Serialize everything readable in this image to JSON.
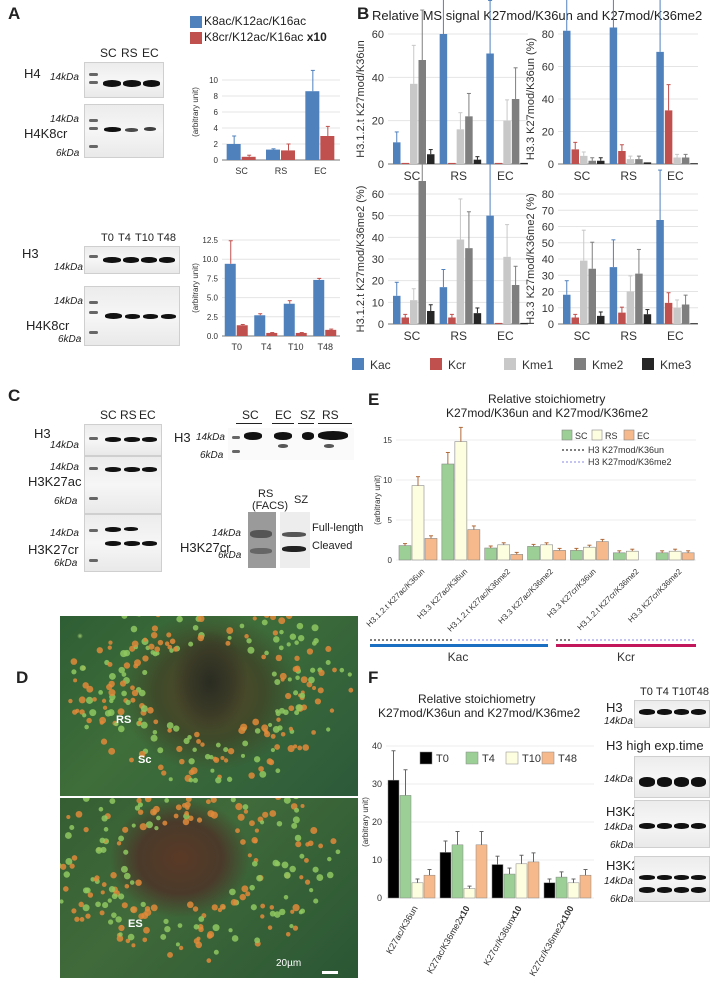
{
  "panels": {
    "A": "A",
    "B": "B",
    "C": "C",
    "D": "D",
    "E": "E",
    "F": "F"
  },
  "panelA": {
    "lanes_top": [
      "SC",
      "RS",
      "EC"
    ],
    "blot1_label": "H4",
    "blot2_label": "H4K8cr",
    "lanes_bottom": [
      "T0",
      "T4",
      "T10",
      "T48"
    ],
    "blot3_label": "H3",
    "blot4_label": "H4K8cr",
    "mw_14": "14kDa",
    "mw_6": "6kDa"
  },
  "chart_data": [
    {
      "id": "A-top",
      "type": "bar",
      "categories": [
        "SC",
        "RS",
        "EC"
      ],
      "ylabel": "(arbitrary unit)",
      "ylim": [
        0,
        12
      ],
      "legend": [
        "K8ac/K12ac/K16ac",
        "K8cr/K12ac/K16ac x10"
      ],
      "legend_bold": "x10",
      "series": [
        {
          "name": "K8ac/K12ac/K16ac",
          "color": "#4f81bd",
          "values": [
            2.0,
            1.3,
            8.6
          ],
          "errors": [
            1.0,
            0.1,
            2.6
          ]
        },
        {
          "name": "K8cr/K12ac/K16ac x10",
          "color": "#c0504d",
          "values": [
            0.4,
            1.2,
            3.0
          ],
          "errors": [
            0.2,
            0.8,
            1.2
          ]
        }
      ],
      "yticks": [
        "0",
        "2",
        "4",
        "6",
        "8",
        "10"
      ]
    },
    {
      "id": "A-bottom",
      "type": "bar",
      "categories": [
        "T0",
        "T4",
        "T10",
        "T48"
      ],
      "ylabel": "(arbitrary unit)",
      "ylim": [
        0,
        12.5
      ],
      "yticks": [
        "0.0",
        "2.5",
        "5.0",
        "7.5",
        "10.0",
        "12.5"
      ],
      "series": [
        {
          "color": "#c0504d",
          "values": [
            9.4,
            2.7,
            4.2,
            7.3
          ],
          "errors": [
            3.0,
            0.2,
            0.4,
            0.2
          ],
          "fill": "#4f81bd"
        },
        {
          "color": "#c0504d",
          "values": [
            1.4,
            0.4,
            0.4,
            0.8
          ],
          "errors": [
            0.1,
            0.05,
            0.05,
            0.1
          ]
        }
      ]
    },
    {
      "id": "B",
      "type": "bar",
      "title": "Relative MS signal K27mod/K36un and K27mod/K36me2",
      "legend": [
        "Kac",
        "Kcr",
        "Kme1",
        "Kme2",
        "Kme3"
      ],
      "colors": [
        "#4f81bd",
        "#c0504d",
        "#c8c8c8",
        "#7f7f7f",
        "#262626"
      ],
      "subplots": [
        {
          "ylabel": "H3.1.2.t K27mod/K36un",
          "ylim": [
            0,
            60
          ],
          "yticks": [
            "0",
            "20",
            "40",
            "60"
          ],
          "categories": [
            "SC",
            "RS",
            "EC"
          ],
          "values": [
            [
              10,
              0.5,
              37,
              48,
              4.5
            ],
            [
              60,
              0.5,
              16,
              22,
              2
            ],
            [
              51,
              0.5,
              20,
              30,
              0.5
            ]
          ]
        },
        {
          "ylabel": "H3.3 K27mod/K36un (%)",
          "ylim": [
            0,
            80
          ],
          "yticks": [
            "0",
            "20",
            "40",
            "60",
            "80"
          ],
          "categories": [
            "SC",
            "RS",
            "EC"
          ],
          "values": [
            [
              82,
              9,
              5,
              2,
              2
            ],
            [
              84,
              8,
              3,
              3,
              1
            ],
            [
              69,
              33,
              4,
              4,
              0.5
            ]
          ]
        },
        {
          "ylabel": "H3.1.2.t K27mod/K36me2 (%)",
          "ylim": [
            0,
            60
          ],
          "yticks": [
            "0",
            "10",
            "20",
            "30",
            "40",
            "50",
            "60"
          ],
          "categories": [
            "SC",
            "RS",
            "EC"
          ],
          "values": [
            [
              13,
              3,
              11,
              66,
              6
            ],
            [
              17,
              3,
              39,
              35,
              5
            ],
            [
              50,
              0.5,
              31,
              18,
              0.5
            ]
          ]
        },
        {
          "ylabel": "H3.3 K27mod/K36me2 (%)",
          "ylim": [
            0,
            80
          ],
          "yticks": [
            "0",
            "10",
            "20",
            "30",
            "40",
            "50",
            "60",
            "70",
            "80"
          ],
          "categories": [
            "SC",
            "RS",
            "EC"
          ],
          "values": [
            [
              18,
              4,
              39,
              34,
              5
            ],
            [
              35,
              7,
              20,
              31,
              6
            ],
            [
              64,
              13,
              10,
              12,
              0.5
            ]
          ]
        }
      ]
    },
    {
      "id": "E",
      "type": "bar",
      "title": "Relative stoichiometry",
      "subtitle": "K27mod/K36un and K27mod/K36me2",
      "ylabel": "(arbitrary unit)",
      "ylim": [
        0,
        15
      ],
      "yticks": [
        "0",
        "5",
        "10",
        "15"
      ],
      "legend": [
        "SC",
        "RS",
        "EC"
      ],
      "legend_lines": [
        "H3 K27mod/K36un",
        "H3 K27mod/K36me2"
      ],
      "colors": [
        "#9bcf95",
        "#fdfde0",
        "#f6b98b"
      ],
      "categories": [
        "H3.1.2.t K27ac/K36un",
        "H3.3 K27ac/K36un",
        "H3.1.2.t K27ac/K36me2",
        "H3.3 K27ac/K36me2",
        "H3.3 K27cr/K36un",
        "H3.1.2.t K27cr/K36me2",
        "H3.3 K27cr/K36me2"
      ],
      "values": [
        [
          1.8,
          9.3,
          2.7
        ],
        [
          12.0,
          14.8,
          3.8
        ],
        [
          1.5,
          1.9,
          0.7
        ],
        [
          1.7,
          1.9,
          1.2
        ],
        [
          1.2,
          1.6,
          2.3
        ],
        [
          0.9,
          1.1,
          0
        ],
        [
          0.9,
          1.1,
          0.9
        ]
      ],
      "groups": [
        "Kac",
        "Kcr"
      ]
    },
    {
      "id": "F",
      "type": "bar",
      "title": "Relative stoichiometry",
      "subtitle": "K27mod/K36un and K27mod/K36me2",
      "ylabel": "(arbitrary unit)",
      "ylim": [
        0,
        40
      ],
      "yticks": [
        "0",
        "10",
        "20",
        "30",
        "40"
      ],
      "legend": [
        "T0",
        "T4",
        "T10",
        "T48"
      ],
      "colors": [
        "#000000",
        "#9bcf95",
        "#fdfde0",
        "#f6b98b"
      ],
      "categories": [
        "K27ac/K36un",
        "K27ac/K36me2x10",
        "K27cr/K36unx10",
        "K27cr/K36me2x100"
      ],
      "category_bold": [
        "",
        "x10",
        "x10",
        "x100"
      ],
      "category_base": [
        "K27ac/K36un",
        "K27ac/K36me2",
        "K27cr/K36un",
        "K27cr/K36me2"
      ],
      "values": [
        [
          31,
          27,
          4,
          6
        ],
        [
          12,
          14,
          2.5,
          14
        ],
        [
          8.8,
          6.3,
          9,
          9.5
        ],
        [
          4,
          5.5,
          4,
          6
        ]
      ]
    }
  ],
  "panelC": {
    "lanes": [
      "SC",
      "RS",
      "EC"
    ],
    "blot1": "H3",
    "blot2": "H3K27ac",
    "blot3": "H3K27cr",
    "right_lanes": [
      "SC",
      "EC",
      "SZ",
      "RS"
    ],
    "right_blot": "H3",
    "bottom_rs": "RS",
    "bottom_facs": "(FACS)",
    "bottom_sz": "SZ",
    "bottom_label": "H3K27cr",
    "full_length": "Full-length",
    "cleaved": "Cleaved"
  },
  "panelD": {
    "rs": "RS",
    "sc": "Sc",
    "es": "ES",
    "scale": "20µm"
  },
  "panelF_blots": {
    "lanes": [
      "T0",
      "T4",
      "T10",
      "T48"
    ],
    "b1": "H3",
    "b2": "H3 high exp.time",
    "b3": "H3K27ac",
    "b4": "H3K27cr"
  }
}
